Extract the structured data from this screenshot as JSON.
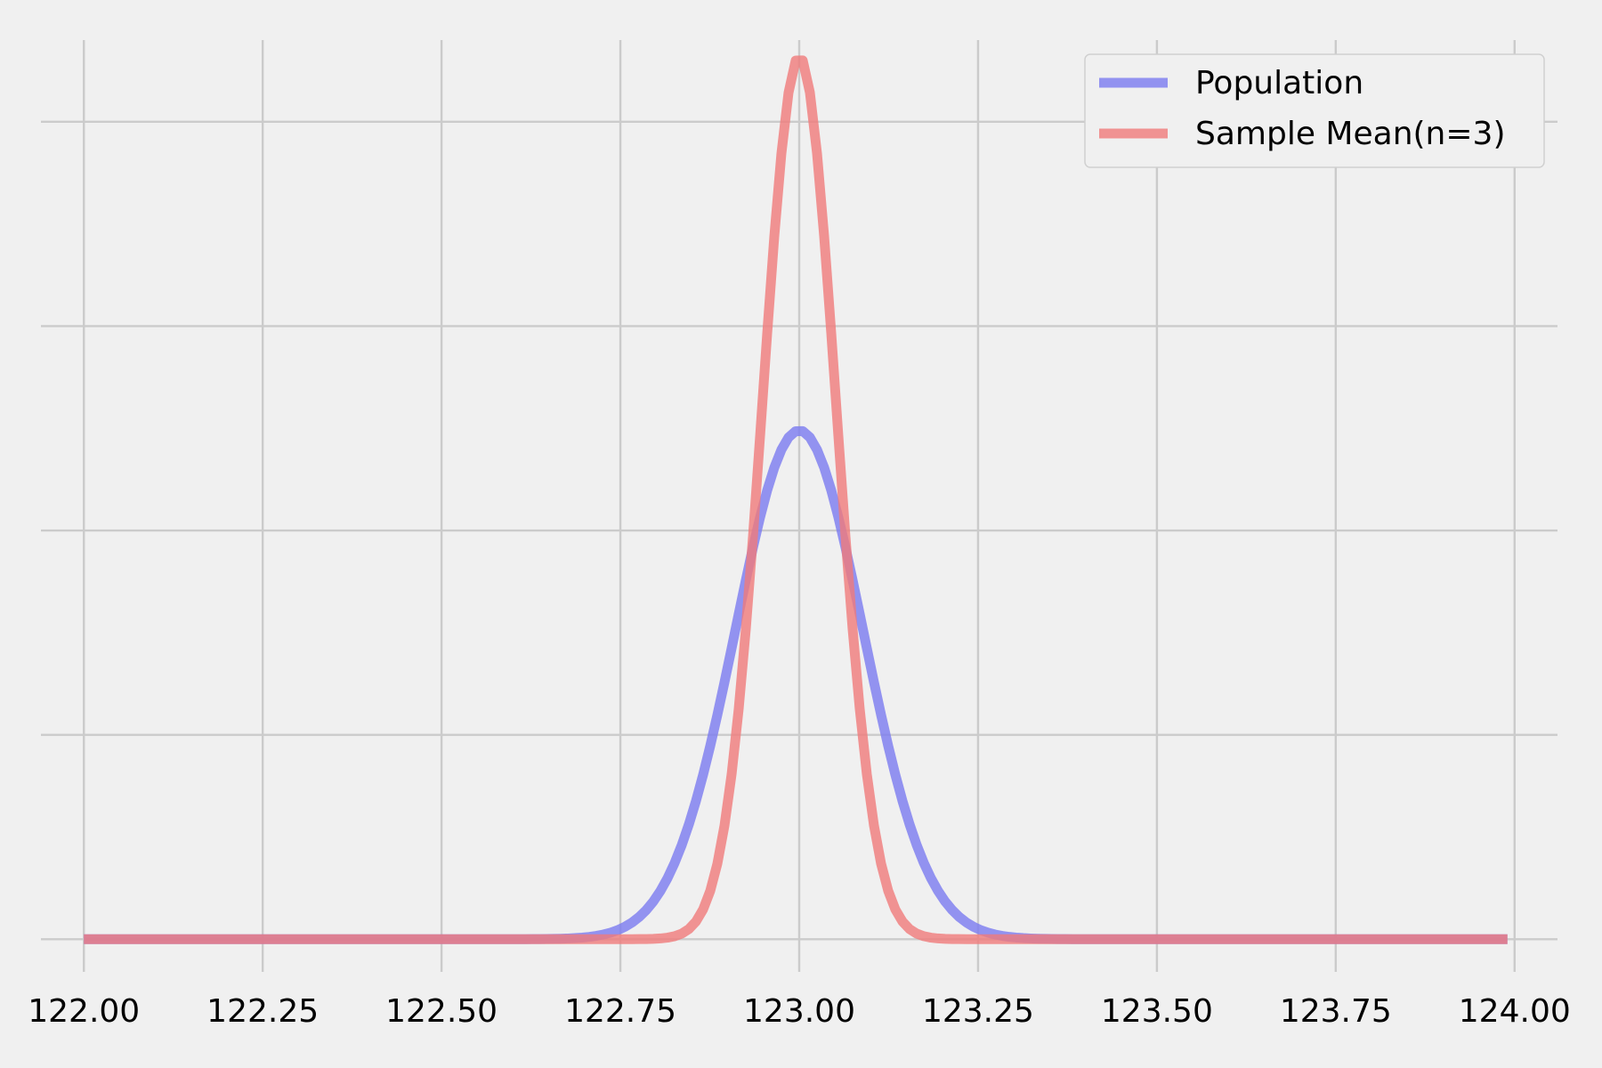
{
  "chart_data": {
    "type": "line",
    "title": "",
    "xlabel": "",
    "ylabel": "",
    "xlim": [
      121.94,
      124.06
    ],
    "ylim": [
      -0.16,
      4.4
    ],
    "x_ticks": [
      122.0,
      122.25,
      122.5,
      122.75,
      123.0,
      123.25,
      123.5,
      123.75,
      124.0
    ],
    "x_tick_labels": [
      "122.00",
      "122.25",
      "122.50",
      "122.75",
      "123.00",
      "123.25",
      "123.50",
      "123.75",
      "124.00"
    ],
    "y_ticks": [
      0,
      1,
      2,
      3,
      4
    ],
    "y_tick_labels": [],
    "grid": true,
    "legend_position": "top-right",
    "x_range": [
      122.0,
      123.99
    ],
    "series": [
      {
        "name": "Population",
        "color": "#7b7bf0",
        "mean": 123.0,
        "sd": 0.0894,
        "peak": 2.49
      },
      {
        "name": "Sample Mean(n=3)",
        "color": "#f07b7b",
        "mean": 123.0,
        "sd": 0.0516,
        "peak": 4.32
      }
    ]
  }
}
